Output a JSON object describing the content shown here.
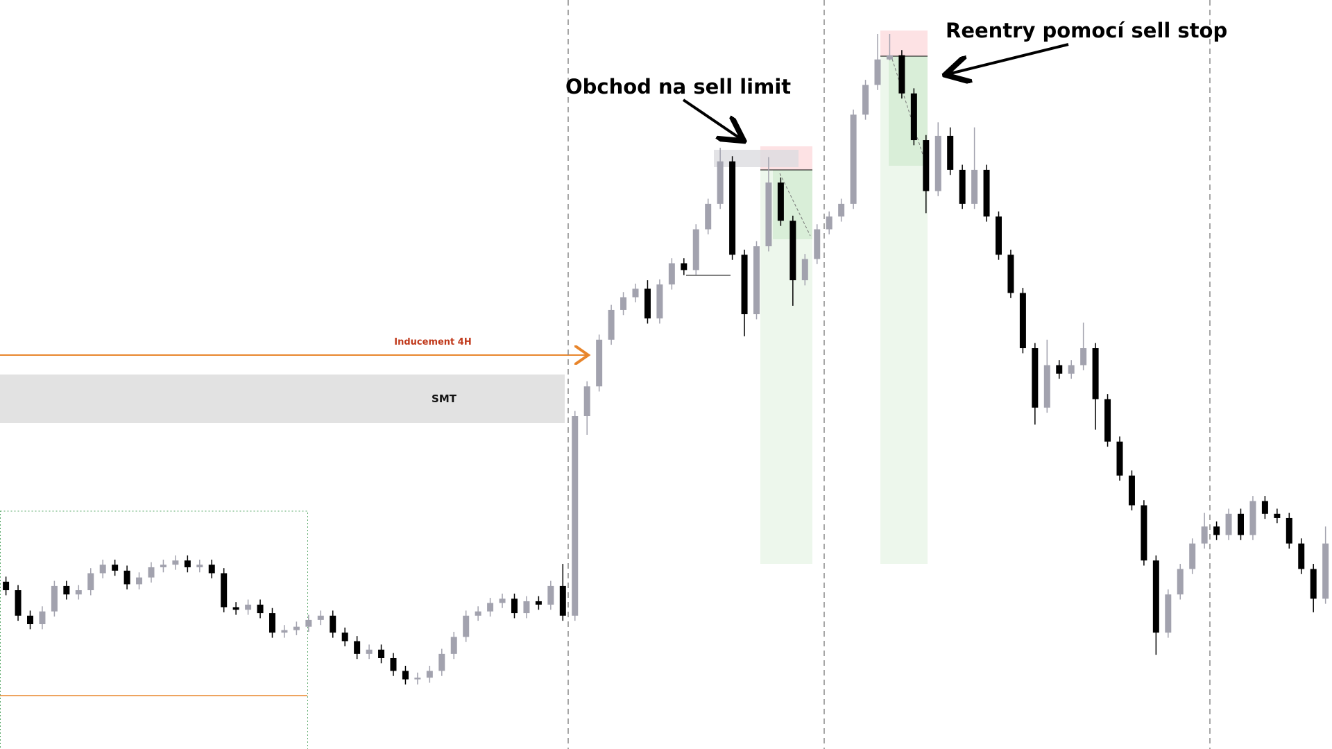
{
  "chart_data": {
    "type": "candlestick",
    "ylim": [
      0,
      882
    ],
    "up_color": "#a2a2ae",
    "down_color": "#000000",
    "candles": [
      [
        197,
        203,
        181,
        187
      ],
      [
        187,
        193,
        151,
        157
      ],
      [
        157,
        163,
        141,
        147
      ],
      [
        147,
        168,
        141,
        162
      ],
      [
        162,
        198,
        156,
        192
      ],
      [
        192,
        198,
        176,
        182
      ],
      [
        182,
        193,
        176,
        187
      ],
      [
        187,
        213,
        181,
        207
      ],
      [
        207,
        223,
        201,
        217
      ],
      [
        217,
        223,
        204,
        210
      ],
      [
        210,
        216,
        188,
        194
      ],
      [
        194,
        208,
        188,
        202
      ],
      [
        202,
        220,
        196,
        214
      ],
      [
        214,
        223,
        208,
        217
      ],
      [
        217,
        228,
        211,
        222
      ],
      [
        222,
        228,
        208,
        214
      ],
      [
        214,
        223,
        208,
        217
      ],
      [
        217,
        223,
        201,
        207
      ],
      [
        207,
        213,
        161,
        167
      ],
      [
        167,
        173,
        158,
        164
      ],
      [
        164,
        176,
        158,
        170
      ],
      [
        170,
        176,
        154,
        160
      ],
      [
        160,
        166,
        131,
        137
      ],
      [
        137,
        146,
        131,
        140
      ],
      [
        140,
        150,
        134,
        144
      ],
      [
        144,
        158,
        138,
        152
      ],
      [
        152,
        163,
        146,
        157
      ],
      [
        157,
        163,
        131,
        137
      ],
      [
        137,
        143,
        121,
        127
      ],
      [
        127,
        133,
        106,
        112
      ],
      [
        112,
        123,
        106,
        117
      ],
      [
        117,
        123,
        101,
        107
      ],
      [
        107,
        113,
        86,
        92
      ],
      [
        92,
        98,
        76,
        82
      ],
      [
        82,
        90,
        76,
        84
      ],
      [
        84,
        98,
        78,
        92
      ],
      [
        92,
        118,
        86,
        112
      ],
      [
        112,
        138,
        106,
        132
      ],
      [
        132,
        163,
        126,
        157
      ],
      [
        157,
        168,
        151,
        162
      ],
      [
        162,
        178,
        156,
        172
      ],
      [
        172,
        183,
        166,
        177
      ],
      [
        177,
        183,
        154,
        160
      ],
      [
        160,
        180,
        154,
        174
      ],
      [
        174,
        180,
        164,
        170
      ],
      [
        170,
        198,
        164,
        192
      ],
      [
        192,
        218,
        151,
        157
      ],
      [
        157,
        398,
        151,
        392
      ],
      [
        392,
        433,
        370,
        427
      ],
      [
        427,
        488,
        421,
        482
      ],
      [
        482,
        523,
        476,
        517
      ],
      [
        517,
        538,
        511,
        532
      ],
      [
        532,
        548,
        526,
        542
      ],
      [
        542,
        552,
        501,
        507
      ],
      [
        507,
        553,
        501,
        547
      ],
      [
        547,
        578,
        541,
        572
      ],
      [
        572,
        578,
        558,
        564
      ],
      [
        564,
        618,
        558,
        612
      ],
      [
        612,
        648,
        606,
        642
      ],
      [
        642,
        708,
        636,
        692
      ],
      [
        692,
        698,
        576,
        582
      ],
      [
        582,
        588,
        486,
        512
      ],
      [
        512,
        598,
        506,
        592
      ],
      [
        592,
        697,
        586,
        667
      ],
      [
        667,
        673,
        616,
        622
      ],
      [
        622,
        628,
        522,
        552
      ],
      [
        552,
        583,
        546,
        577
      ],
      [
        577,
        618,
        571,
        612
      ],
      [
        612,
        633,
        606,
        627
      ],
      [
        627,
        648,
        621,
        642
      ],
      [
        642,
        753,
        636,
        747
      ],
      [
        747,
        788,
        741,
        782
      ],
      [
        782,
        842,
        776,
        812
      ],
      [
        812,
        842,
        811,
        817
      ],
      [
        817,
        823,
        766,
        772
      ],
      [
        772,
        778,
        711,
        717
      ],
      [
        717,
        723,
        631,
        657
      ],
      [
        657,
        738,
        651,
        722
      ],
      [
        722,
        732,
        676,
        682
      ],
      [
        682,
        688,
        636,
        642
      ],
      [
        642,
        732,
        636,
        682
      ],
      [
        682,
        688,
        621,
        627
      ],
      [
        627,
        633,
        576,
        582
      ],
      [
        582,
        588,
        531,
        537
      ],
      [
        537,
        543,
        466,
        472
      ],
      [
        472,
        478,
        382,
        402
      ],
      [
        402,
        482,
        396,
        452
      ],
      [
        452,
        458,
        436,
        442
      ],
      [
        442,
        458,
        436,
        452
      ],
      [
        452,
        502,
        446,
        472
      ],
      [
        472,
        478,
        376,
        412
      ],
      [
        412,
        418,
        356,
        362
      ],
      [
        362,
        368,
        316,
        322
      ],
      [
        322,
        328,
        281,
        287
      ],
      [
        287,
        293,
        216,
        222
      ],
      [
        222,
        228,
        111,
        137
      ],
      [
        137,
        188,
        131,
        182
      ],
      [
        182,
        218,
        176,
        212
      ],
      [
        212,
        248,
        206,
        242
      ],
      [
        242,
        278,
        236,
        262
      ],
      [
        262,
        268,
        246,
        252
      ],
      [
        252,
        283,
        246,
        277
      ],
      [
        277,
        283,
        246,
        252
      ],
      [
        252,
        298,
        246,
        292
      ],
      [
        292,
        298,
        271,
        277
      ],
      [
        277,
        283,
        266,
        272
      ],
      [
        272,
        278,
        236,
        242
      ],
      [
        242,
        248,
        206,
        212
      ],
      [
        212,
        218,
        161,
        177
      ],
      [
        177,
        262,
        171,
        242
      ]
    ],
    "annotations": {
      "inducement": "Inducement 4H",
      "smt": "SMT",
      "trade1": "Obchod na sell limit",
      "trade2": "Reentry pomocí sell stop"
    }
  }
}
